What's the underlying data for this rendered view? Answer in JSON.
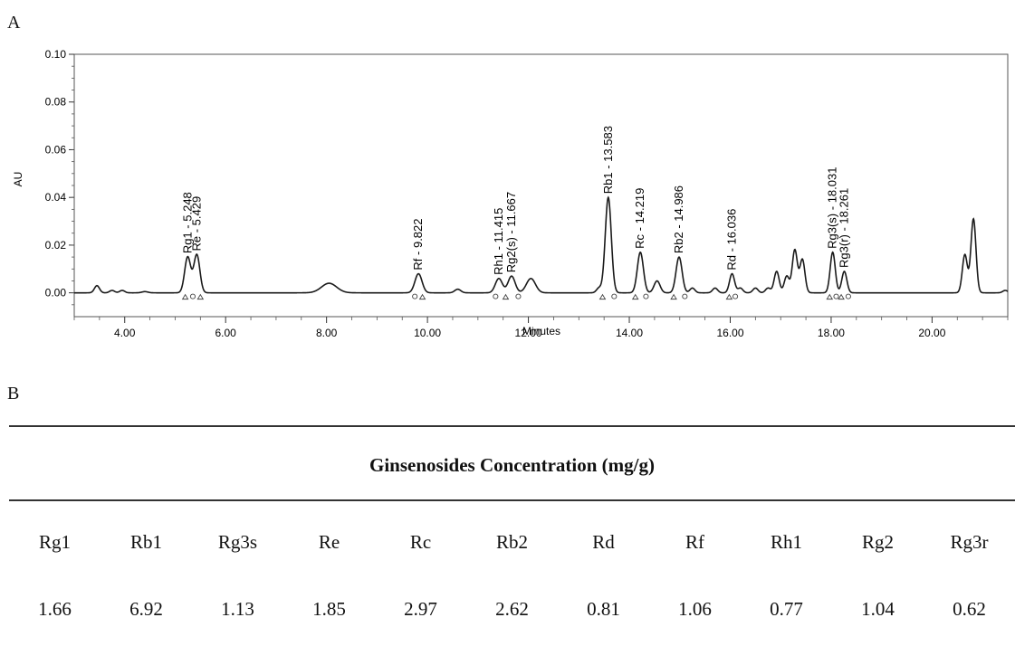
{
  "panel_a_label": "A",
  "panel_b_label": "B",
  "chart_data": {
    "type": "line",
    "title": "",
    "xlabel": "Minutes",
    "ylabel": "AU",
    "xlim": [
      3.0,
      21.5
    ],
    "ylim": [
      -0.01,
      0.1
    ],
    "x_ticks": [
      4.0,
      6.0,
      8.0,
      10.0,
      12.0,
      14.0,
      16.0,
      18.0,
      20.0
    ],
    "x_tick_labels": [
      "4.00",
      "6.00",
      "8.00",
      "10.00",
      "12.00",
      "14.00",
      "16.00",
      "18.00",
      "20.00"
    ],
    "y_ticks": [
      0.0,
      0.02,
      0.04,
      0.06,
      0.08,
      0.1
    ],
    "y_tick_labels": [
      "0.00",
      "0.02",
      "0.04",
      "0.06",
      "0.08",
      "0.10"
    ],
    "grid": false,
    "baseline": 0.0,
    "peaks": [
      {
        "x": 3.45,
        "h": 0.003,
        "w": 0.05
      },
      {
        "x": 3.75,
        "h": 0.001,
        "w": 0.05
      },
      {
        "x": 3.95,
        "h": 0.001,
        "w": 0.05
      },
      {
        "x": 4.4,
        "h": 0.0005,
        "w": 0.06
      },
      {
        "x": 5.248,
        "h": 0.015,
        "w": 0.06
      },
      {
        "x": 5.429,
        "h": 0.016,
        "w": 0.06
      },
      {
        "x": 8.05,
        "h": 0.004,
        "w": 0.15
      },
      {
        "x": 9.822,
        "h": 0.008,
        "w": 0.07
      },
      {
        "x": 10.6,
        "h": 0.0015,
        "w": 0.06
      },
      {
        "x": 11.415,
        "h": 0.006,
        "w": 0.07
      },
      {
        "x": 11.667,
        "h": 0.007,
        "w": 0.07
      },
      {
        "x": 12.05,
        "h": 0.006,
        "w": 0.09
      },
      {
        "x": 13.4,
        "h": 0.002,
        "w": 0.05
      },
      {
        "x": 13.583,
        "h": 0.04,
        "w": 0.06
      },
      {
        "x": 14.219,
        "h": 0.017,
        "w": 0.06
      },
      {
        "x": 14.55,
        "h": 0.005,
        "w": 0.06
      },
      {
        "x": 14.986,
        "h": 0.015,
        "w": 0.06
      },
      {
        "x": 15.25,
        "h": 0.002,
        "w": 0.05
      },
      {
        "x": 15.7,
        "h": 0.002,
        "w": 0.05
      },
      {
        "x": 16.036,
        "h": 0.008,
        "w": 0.05
      },
      {
        "x": 16.2,
        "h": 0.002,
        "w": 0.05
      },
      {
        "x": 16.5,
        "h": 0.002,
        "w": 0.05
      },
      {
        "x": 16.75,
        "h": 0.002,
        "w": 0.05
      },
      {
        "x": 16.92,
        "h": 0.009,
        "w": 0.05
      },
      {
        "x": 17.12,
        "h": 0.007,
        "w": 0.05
      },
      {
        "x": 17.28,
        "h": 0.018,
        "w": 0.05
      },
      {
        "x": 17.43,
        "h": 0.014,
        "w": 0.05
      },
      {
        "x": 18.031,
        "h": 0.017,
        "w": 0.05
      },
      {
        "x": 18.261,
        "h": 0.009,
        "w": 0.05
      },
      {
        "x": 20.65,
        "h": 0.016,
        "w": 0.05
      },
      {
        "x": 20.82,
        "h": 0.031,
        "w": 0.05
      },
      {
        "x": 21.45,
        "h": 0.001,
        "w": 0.05
      }
    ],
    "annotations": [
      {
        "text": "Rg1 - 5.248",
        "x": 5.248,
        "y": 0.0165
      },
      {
        "text": "Re - 5.429",
        "x": 5.429,
        "y": 0.0175
      },
      {
        "text": "Rf - 9.822",
        "x": 9.822,
        "y": 0.0095
      },
      {
        "text": "Rh1 - 11.415",
        "x": 11.415,
        "y": 0.0075
      },
      {
        "text": "Rg2(s) - 11.667",
        "x": 11.667,
        "y": 0.0085
      },
      {
        "text": "Rb1 - 13.583",
        "x": 13.583,
        "y": 0.0415
      },
      {
        "text": "Rc - 14.219",
        "x": 14.219,
        "y": 0.0185
      },
      {
        "text": "Rb2 - 14.986",
        "x": 14.986,
        "y": 0.0165
      },
      {
        "text": "Rd - 16.036",
        "x": 16.036,
        "y": 0.0095
      },
      {
        "text": "Rg3(s) - 18.031",
        "x": 18.031,
        "y": 0.0185
      },
      {
        "text": "Rg3(r) - 18.261",
        "x": 18.261,
        "y": 0.0105
      }
    ],
    "markers_x": [
      5.2,
      5.35,
      5.5,
      9.75,
      9.9,
      11.35,
      11.55,
      11.8,
      13.47,
      13.7,
      14.12,
      14.33,
      14.88,
      15.1,
      15.98,
      16.1,
      17.97,
      18.1,
      18.2,
      18.34
    ]
  },
  "table": {
    "title": "Ginsenosides Concentration (mg/g)",
    "headers": [
      "Rg1",
      "Rb1",
      "Rg3s",
      "Re",
      "Rc",
      "Rb2",
      "Rd",
      "Rf",
      "Rh1",
      "Rg2",
      "Rg3r"
    ],
    "values": [
      "1.66",
      "6.92",
      "1.13",
      "1.85",
      "2.97",
      "2.62",
      "0.81",
      "1.06",
      "0.77",
      "1.04",
      "0.62"
    ]
  }
}
